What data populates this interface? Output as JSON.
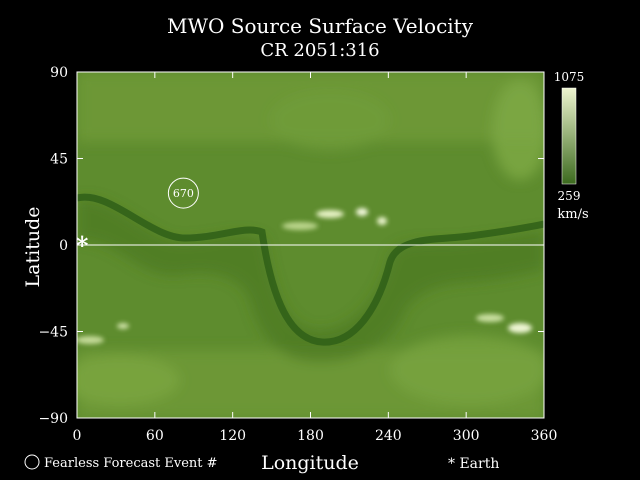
{
  "chart_data": {
    "type": "heatmap",
    "title": "MWO Source Surface Velocity",
    "subtitle": "CR 2051:316",
    "xlabel": "Longitude",
    "ylabel": "Latitude",
    "xlim": [
      0,
      360
    ],
    "ylim": [
      -90,
      90
    ],
    "xticks": [
      "0",
      "60",
      "120",
      "180",
      "240",
      "300",
      "360"
    ],
    "yticks": [
      "90",
      "45",
      "0",
      "−45",
      "−90"
    ],
    "colorbar": {
      "max": "1075",
      "min": "259",
      "unit": "km/s",
      "low_color": "#3c6a1e",
      "high_color": "#eef5d0"
    },
    "neutral_line_color": "#2f5f18",
    "equator_color": "#ffffff",
    "events": [
      {
        "label": "670",
        "longitude": 82,
        "latitude": 27
      }
    ],
    "earth": {
      "longitude": 4,
      "latitude": 0
    },
    "legend": {
      "event_label": "Fearless Forecast Event #",
      "earth_label": "* Earth"
    }
  }
}
